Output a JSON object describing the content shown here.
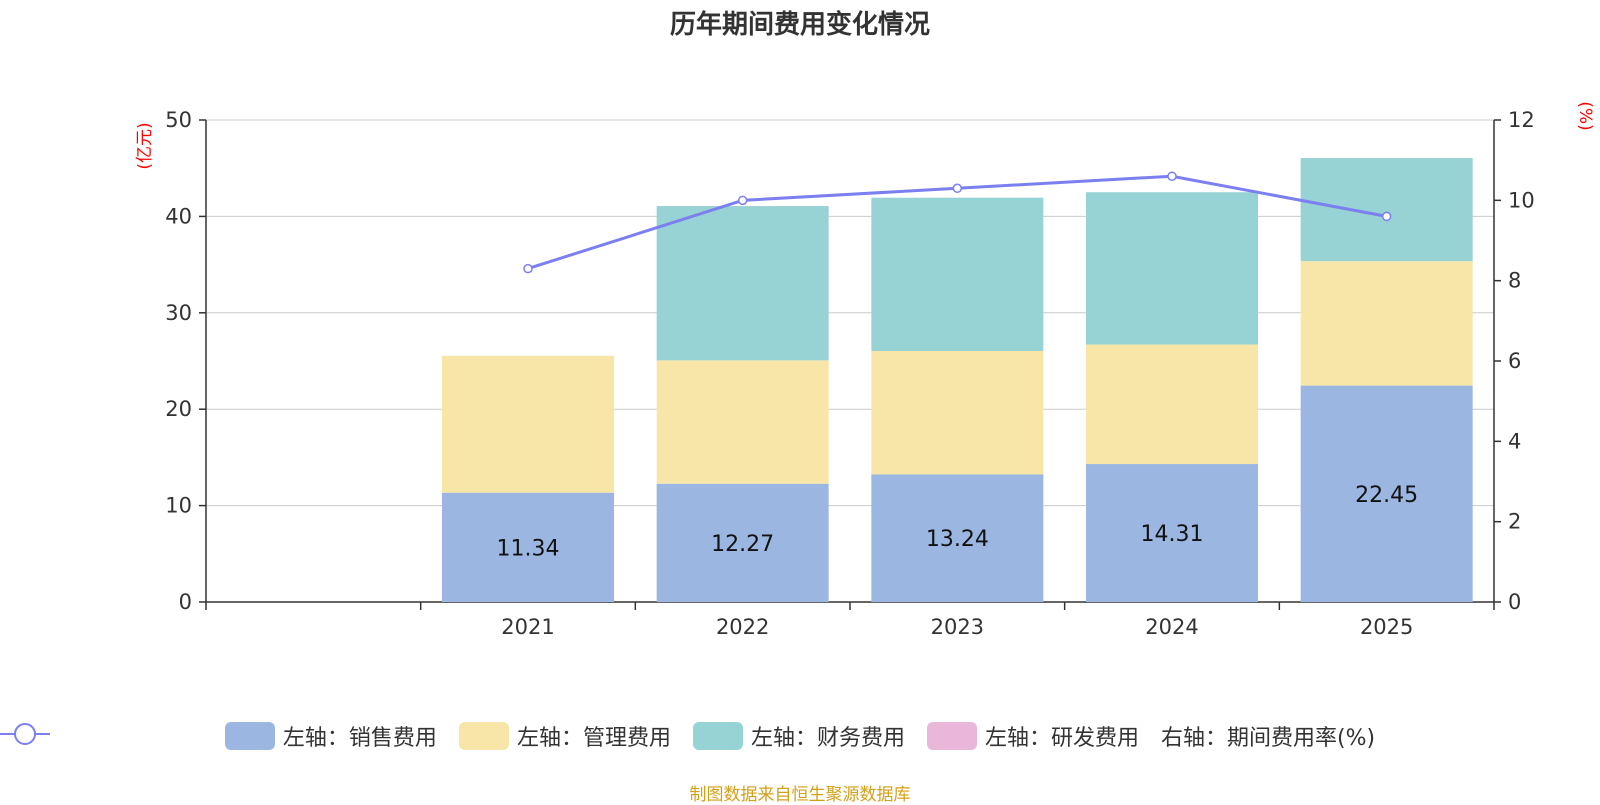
{
  "chart_data": {
    "type": "bar",
    "title": "历年期间费用变化情况",
    "categories": [
      "2021",
      "2022",
      "2023",
      "2024",
      "2025"
    ],
    "left_axis": {
      "unit": "(亿元)",
      "ylim": [
        0,
        50
      ],
      "ticks": [
        0,
        10,
        20,
        30,
        40,
        50
      ]
    },
    "right_axis": {
      "unit": "(%)",
      "ylim": [
        0,
        12
      ],
      "ticks": [
        0,
        2,
        4,
        6,
        8,
        10,
        12
      ]
    },
    "series": [
      {
        "name": "左轴：销售费用",
        "type": "bar",
        "stack": "total",
        "axis": "left",
        "color": "#9bb7e1",
        "values": [
          11.34,
          12.27,
          13.24,
          14.31,
          22.45
        ],
        "labels": [
          "11.34",
          "12.27",
          "13.24",
          "14.31",
          "22.45"
        ]
      },
      {
        "name": "左轴：管理费用",
        "type": "bar",
        "stack": "total",
        "axis": "left",
        "color": "#f7e6a8",
        "values": [
          14.2,
          12.8,
          12.8,
          12.4,
          12.9
        ]
      },
      {
        "name": "左轴：财务费用",
        "type": "bar",
        "stack": "total",
        "axis": "left",
        "color": "#97d3d4",
        "values": [
          0,
          16.0,
          15.9,
          15.8,
          10.7
        ]
      },
      {
        "name": "左轴：研发费用",
        "type": "bar",
        "stack": "total",
        "axis": "left",
        "color": "#e8b7da",
        "values": [
          0,
          0,
          0,
          0,
          0
        ]
      },
      {
        "name": "右轴：期间费用率(%)",
        "type": "line",
        "axis": "right",
        "color": "#7b7ff0",
        "values": [
          8.3,
          10.0,
          10.3,
          10.6,
          9.6
        ]
      }
    ],
    "legend_position": "bottom",
    "grid": true
  },
  "source_note": "制图数据来自恒生聚源数据库"
}
